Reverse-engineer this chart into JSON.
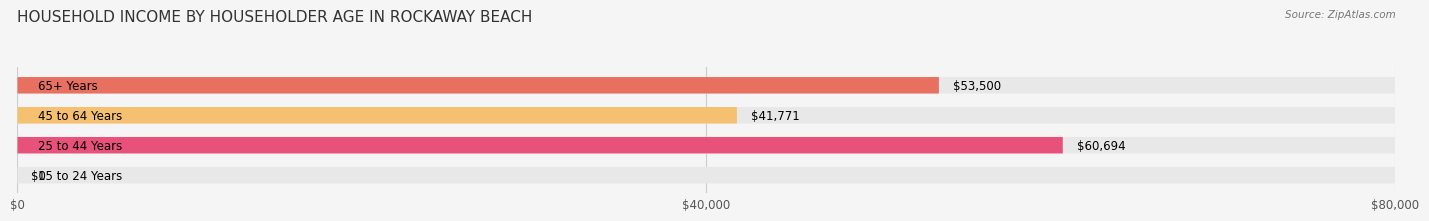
{
  "title": "HOUSEHOLD INCOME BY HOUSEHOLDER AGE IN ROCKAWAY BEACH",
  "source": "Source: ZipAtlas.com",
  "categories": [
    "15 to 24 Years",
    "25 to 44 Years",
    "45 to 64 Years",
    "65+ Years"
  ],
  "values": [
    0,
    60694,
    41771,
    53500
  ],
  "bar_colors": [
    "#a8a8d8",
    "#e8527a",
    "#f5c070",
    "#e87060"
  ],
  "value_labels": [
    "$0",
    "$60,694",
    "$41,771",
    "$53,500"
  ],
  "xlim": [
    0,
    80000
  ],
  "xticks": [
    0,
    40000,
    80000
  ],
  "xtick_labels": [
    "$0",
    "$40,000",
    "$80,000"
  ],
  "figsize": [
    14.06,
    2.33
  ],
  "background_color": "#f5f5f5",
  "title_fontsize": 11,
  "bar_height": 0.55,
  "label_fontsize": 8.5
}
